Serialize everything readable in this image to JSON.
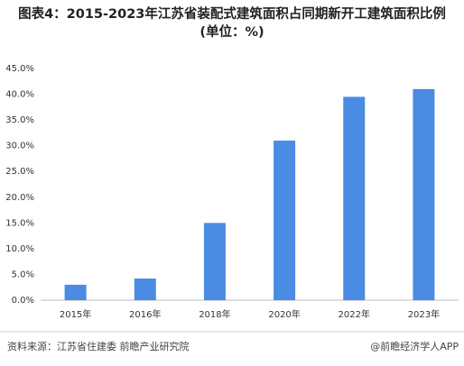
{
  "chart_data": {
    "type": "bar",
    "title": "图表4：2015-2023年江苏省装配式建筑面积占同期新开工建筑面积比例(单位：%)",
    "categories": [
      "2015年",
      "2016年",
      "2018年",
      "2020年",
      "2022年",
      "2023年"
    ],
    "values": [
      3.0,
      4.2,
      15.0,
      31.0,
      39.5,
      41.0
    ],
    "color": "#4a8be3",
    "ylim": [
      0,
      45
    ],
    "yticks": [
      {
        "value": 0,
        "label": "0.0%"
      },
      {
        "value": 5,
        "label": "5.0%"
      },
      {
        "value": 10,
        "label": "10.0%"
      },
      {
        "value": 15,
        "label": "15.0%"
      },
      {
        "value": 20,
        "label": "20.0%"
      },
      {
        "value": 25,
        "label": "25.0%"
      },
      {
        "value": 30,
        "label": "30.0%"
      },
      {
        "value": 35,
        "label": "35.0%"
      },
      {
        "value": 40,
        "label": "40.0%"
      },
      {
        "value": 45,
        "label": "45.0%"
      }
    ],
    "grid": false,
    "source": "资料来源：江苏省住建委 前瞻产业研究院",
    "credit": "@前瞻经济学人APP"
  }
}
